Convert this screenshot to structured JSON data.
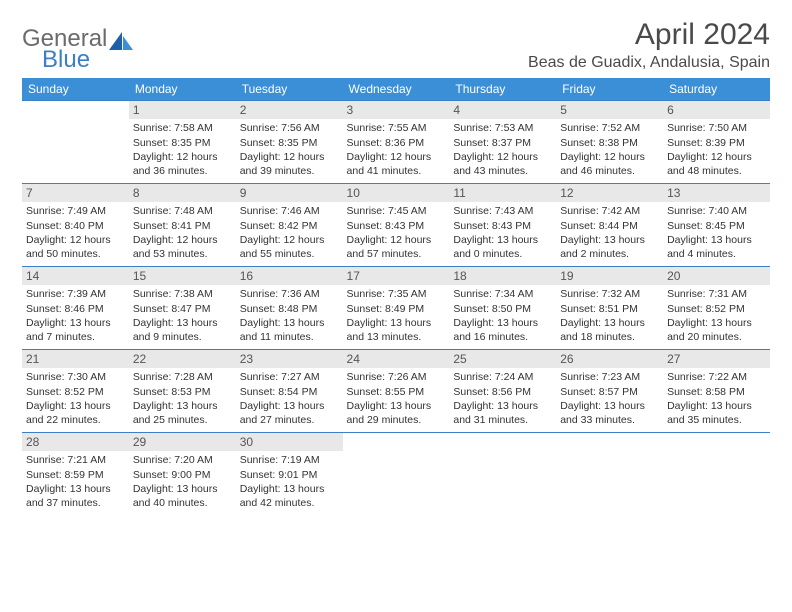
{
  "logo": {
    "general": "General",
    "blue": "Blue"
  },
  "title": "April 2024",
  "location": "Beas de Guadix, Andalusia, Spain",
  "colors": {
    "header_bg": "#3b8fd6",
    "header_text": "#ffffff",
    "border": "#3b7fc4",
    "daynum_bg": "#e8e8e8",
    "logo_gray": "#6b6b6b",
    "logo_blue": "#3b7fc4",
    "body_bg": "#ffffff",
    "text": "#333333"
  },
  "day_headers": [
    "Sunday",
    "Monday",
    "Tuesday",
    "Wednesday",
    "Thursday",
    "Friday",
    "Saturday"
  ],
  "weeks": [
    [
      null,
      {
        "num": "1",
        "sunrise": "Sunrise: 7:58 AM",
        "sunset": "Sunset: 8:35 PM",
        "daylight1": "Daylight: 12 hours",
        "daylight2": "and 36 minutes."
      },
      {
        "num": "2",
        "sunrise": "Sunrise: 7:56 AM",
        "sunset": "Sunset: 8:35 PM",
        "daylight1": "Daylight: 12 hours",
        "daylight2": "and 39 minutes."
      },
      {
        "num": "3",
        "sunrise": "Sunrise: 7:55 AM",
        "sunset": "Sunset: 8:36 PM",
        "daylight1": "Daylight: 12 hours",
        "daylight2": "and 41 minutes."
      },
      {
        "num": "4",
        "sunrise": "Sunrise: 7:53 AM",
        "sunset": "Sunset: 8:37 PM",
        "daylight1": "Daylight: 12 hours",
        "daylight2": "and 43 minutes."
      },
      {
        "num": "5",
        "sunrise": "Sunrise: 7:52 AM",
        "sunset": "Sunset: 8:38 PM",
        "daylight1": "Daylight: 12 hours",
        "daylight2": "and 46 minutes."
      },
      {
        "num": "6",
        "sunrise": "Sunrise: 7:50 AM",
        "sunset": "Sunset: 8:39 PM",
        "daylight1": "Daylight: 12 hours",
        "daylight2": "and 48 minutes."
      }
    ],
    [
      {
        "num": "7",
        "sunrise": "Sunrise: 7:49 AM",
        "sunset": "Sunset: 8:40 PM",
        "daylight1": "Daylight: 12 hours",
        "daylight2": "and 50 minutes."
      },
      {
        "num": "8",
        "sunrise": "Sunrise: 7:48 AM",
        "sunset": "Sunset: 8:41 PM",
        "daylight1": "Daylight: 12 hours",
        "daylight2": "and 53 minutes."
      },
      {
        "num": "9",
        "sunrise": "Sunrise: 7:46 AM",
        "sunset": "Sunset: 8:42 PM",
        "daylight1": "Daylight: 12 hours",
        "daylight2": "and 55 minutes."
      },
      {
        "num": "10",
        "sunrise": "Sunrise: 7:45 AM",
        "sunset": "Sunset: 8:43 PM",
        "daylight1": "Daylight: 12 hours",
        "daylight2": "and 57 minutes."
      },
      {
        "num": "11",
        "sunrise": "Sunrise: 7:43 AM",
        "sunset": "Sunset: 8:43 PM",
        "daylight1": "Daylight: 13 hours",
        "daylight2": "and 0 minutes."
      },
      {
        "num": "12",
        "sunrise": "Sunrise: 7:42 AM",
        "sunset": "Sunset: 8:44 PM",
        "daylight1": "Daylight: 13 hours",
        "daylight2": "and 2 minutes."
      },
      {
        "num": "13",
        "sunrise": "Sunrise: 7:40 AM",
        "sunset": "Sunset: 8:45 PM",
        "daylight1": "Daylight: 13 hours",
        "daylight2": "and 4 minutes."
      }
    ],
    [
      {
        "num": "14",
        "sunrise": "Sunrise: 7:39 AM",
        "sunset": "Sunset: 8:46 PM",
        "daylight1": "Daylight: 13 hours",
        "daylight2": "and 7 minutes."
      },
      {
        "num": "15",
        "sunrise": "Sunrise: 7:38 AM",
        "sunset": "Sunset: 8:47 PM",
        "daylight1": "Daylight: 13 hours",
        "daylight2": "and 9 minutes."
      },
      {
        "num": "16",
        "sunrise": "Sunrise: 7:36 AM",
        "sunset": "Sunset: 8:48 PM",
        "daylight1": "Daylight: 13 hours",
        "daylight2": "and 11 minutes."
      },
      {
        "num": "17",
        "sunrise": "Sunrise: 7:35 AM",
        "sunset": "Sunset: 8:49 PM",
        "daylight1": "Daylight: 13 hours",
        "daylight2": "and 13 minutes."
      },
      {
        "num": "18",
        "sunrise": "Sunrise: 7:34 AM",
        "sunset": "Sunset: 8:50 PM",
        "daylight1": "Daylight: 13 hours",
        "daylight2": "and 16 minutes."
      },
      {
        "num": "19",
        "sunrise": "Sunrise: 7:32 AM",
        "sunset": "Sunset: 8:51 PM",
        "daylight1": "Daylight: 13 hours",
        "daylight2": "and 18 minutes."
      },
      {
        "num": "20",
        "sunrise": "Sunrise: 7:31 AM",
        "sunset": "Sunset: 8:52 PM",
        "daylight1": "Daylight: 13 hours",
        "daylight2": "and 20 minutes."
      }
    ],
    [
      {
        "num": "21",
        "sunrise": "Sunrise: 7:30 AM",
        "sunset": "Sunset: 8:52 PM",
        "daylight1": "Daylight: 13 hours",
        "daylight2": "and 22 minutes."
      },
      {
        "num": "22",
        "sunrise": "Sunrise: 7:28 AM",
        "sunset": "Sunset: 8:53 PM",
        "daylight1": "Daylight: 13 hours",
        "daylight2": "and 25 minutes."
      },
      {
        "num": "23",
        "sunrise": "Sunrise: 7:27 AM",
        "sunset": "Sunset: 8:54 PM",
        "daylight1": "Daylight: 13 hours",
        "daylight2": "and 27 minutes."
      },
      {
        "num": "24",
        "sunrise": "Sunrise: 7:26 AM",
        "sunset": "Sunset: 8:55 PM",
        "daylight1": "Daylight: 13 hours",
        "daylight2": "and 29 minutes."
      },
      {
        "num": "25",
        "sunrise": "Sunrise: 7:24 AM",
        "sunset": "Sunset: 8:56 PM",
        "daylight1": "Daylight: 13 hours",
        "daylight2": "and 31 minutes."
      },
      {
        "num": "26",
        "sunrise": "Sunrise: 7:23 AM",
        "sunset": "Sunset: 8:57 PM",
        "daylight1": "Daylight: 13 hours",
        "daylight2": "and 33 minutes."
      },
      {
        "num": "27",
        "sunrise": "Sunrise: 7:22 AM",
        "sunset": "Sunset: 8:58 PM",
        "daylight1": "Daylight: 13 hours",
        "daylight2": "and 35 minutes."
      }
    ],
    [
      {
        "num": "28",
        "sunrise": "Sunrise: 7:21 AM",
        "sunset": "Sunset: 8:59 PM",
        "daylight1": "Daylight: 13 hours",
        "daylight2": "and 37 minutes."
      },
      {
        "num": "29",
        "sunrise": "Sunrise: 7:20 AM",
        "sunset": "Sunset: 9:00 PM",
        "daylight1": "Daylight: 13 hours",
        "daylight2": "and 40 minutes."
      },
      {
        "num": "30",
        "sunrise": "Sunrise: 7:19 AM",
        "sunset": "Sunset: 9:01 PM",
        "daylight1": "Daylight: 13 hours",
        "daylight2": "and 42 minutes."
      },
      null,
      null,
      null,
      null
    ]
  ]
}
